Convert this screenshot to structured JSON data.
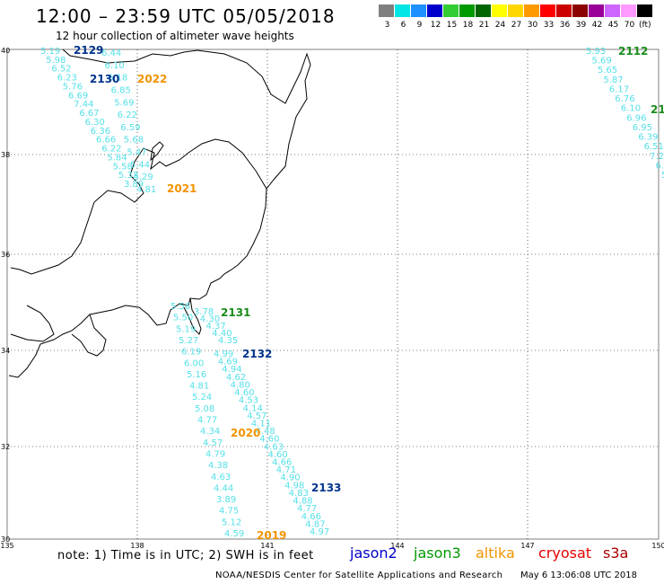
{
  "header": {
    "title": "12:00 – 23:59 UTC 05/05/2018",
    "subtitle": "12 hour collection of altimeter wave heights"
  },
  "colorbar": {
    "unit": "(ft)",
    "swatches": [
      {
        "label": "3",
        "color": "#7f7f7f"
      },
      {
        "label": "6",
        "color": "#00e5e5"
      },
      {
        "label": "9",
        "color": "#1e90ff"
      },
      {
        "label": "12",
        "color": "#0000cd"
      },
      {
        "label": "15",
        "color": "#33cc33"
      },
      {
        "label": "18",
        "color": "#009900"
      },
      {
        "label": "21",
        "color": "#006400"
      },
      {
        "label": "24",
        "color": "#ffff00"
      },
      {
        "label": "27",
        "color": "#ffd700"
      },
      {
        "label": "30",
        "color": "#ff9900"
      },
      {
        "label": "33",
        "color": "#ff0000"
      },
      {
        "label": "36",
        "color": "#cc0000"
      },
      {
        "label": "39",
        "color": "#8b0000"
      },
      {
        "label": "42",
        "color": "#990099"
      },
      {
        "label": "45",
        "color": "#cc66ff"
      },
      {
        "label": "70",
        "color": "#ff99ff"
      },
      {
        "label": "",
        "color": "#000000"
      }
    ]
  },
  "axes": {
    "lat_labels": [
      "40",
      "38",
      "36",
      "34",
      "32",
      "30"
    ],
    "lon_labels": [
      "135",
      "138",
      "141",
      "144",
      "147",
      "150"
    ]
  },
  "tracks": {
    "labels": [
      {
        "text": "2129",
        "color": "#00338c"
      },
      {
        "text": "2022",
        "color": "#f29400"
      },
      {
        "text": "2130",
        "color": "#00338c"
      },
      {
        "text": "2021",
        "color": "#f29400"
      },
      {
        "text": "2112",
        "color": "#1a8c1a"
      },
      {
        "text": "21",
        "color": "#1a8c1a"
      },
      {
        "text": "2131",
        "color": "#1a8c1a"
      },
      {
        "text": "2132",
        "color": "#00338c"
      },
      {
        "text": "2020",
        "color": "#f29400"
      },
      {
        "text": "2133",
        "color": "#00338c"
      },
      {
        "text": "2019",
        "color": "#f29400"
      }
    ],
    "north_left": [
      "5.19",
      "5.98",
      "6.52",
      "6.23",
      "5.76",
      "6.69",
      "7.44",
      "6.67",
      "6.30",
      "6.36",
      "6.66",
      "6.22",
      "5.84",
      "5.58",
      "5.32",
      "3.89"
    ],
    "north_right": [
      "6.44",
      "6.10",
      "6.18",
      "6.85",
      "5.69",
      "6.22",
      "6.59",
      "5.68",
      "5.47",
      "5.44",
      "5.29",
      "4.81"
    ],
    "east": [
      "5.93",
      "5.69",
      "5.65",
      "5.87",
      "6.17",
      "6.76",
      "6.10",
      "6.96",
      "6.95",
      "6.39",
      "6.51",
      "7.2",
      "6.",
      "5"
    ],
    "south_left": [
      "5.56",
      "5.50",
      "5.19",
      "5.27",
      "6.19",
      "6.00",
      "5.16",
      "4.81",
      "5.24",
      "5.08",
      "4.77",
      "4.34",
      "4.57",
      "4.79",
      "4.38",
      "4.63",
      "4.44",
      "3.89",
      "4.75",
      "5.12",
      "4.59"
    ],
    "south_mid": [
      "3.78",
      "4.30",
      "4.37",
      "4.40",
      "4.35"
    ],
    "south_right": [
      "4.99",
      "4.69",
      "4.94",
      "4.62",
      "4.80",
      "4.60",
      "4.53",
      "4.14",
      "4.57",
      "4.11",
      "4.48",
      "4.60",
      "4.63",
      "4.60",
      "4.66",
      "4.71",
      "4.90",
      "4.98",
      "4.83",
      "4.88",
      "4.77",
      "4.66",
      "4.87",
      "4.97"
    ]
  },
  "footer": {
    "note": "note:  1) Time is in UTC; 2) SWH is in feet",
    "legend": [
      {
        "text": "jason2",
        "color": "#0000cc"
      },
      {
        "text": "jason3",
        "color": "#009900"
      },
      {
        "text": "altika",
        "color": "#f29400"
      },
      {
        "text": "cryosat",
        "color": "#e60000"
      },
      {
        "text": "s3a",
        "color": "#aa0000"
      }
    ],
    "credit": "NOAA/NESDIS Center for Satellite Applications and Research",
    "timestamp": "May  6 13:06:08 UTC 2018"
  }
}
